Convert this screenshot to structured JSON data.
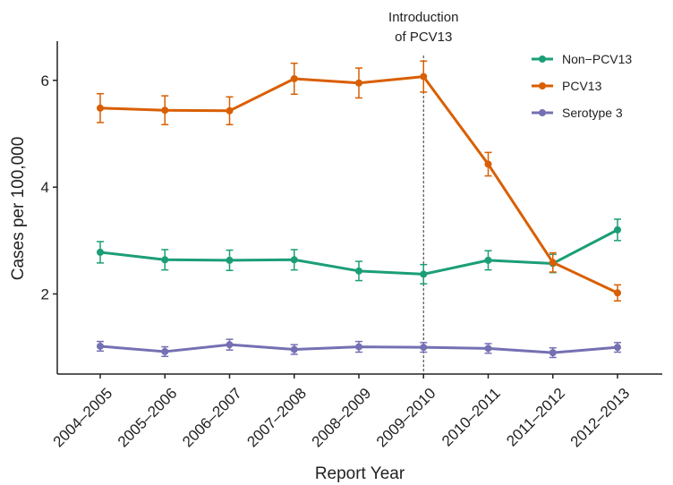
{
  "chart_data": {
    "type": "line",
    "title": "",
    "xlabel": "Report Year",
    "ylabel": "Cases per 100,000",
    "categories": [
      "2004–2005",
      "2005–2006",
      "2006–2007",
      "2007–2008",
      "2008–2009",
      "2009–2010",
      "2010–2011",
      "2011–2012",
      "2012–2013"
    ],
    "y_ticks": [
      2,
      4,
      6
    ],
    "ylim": [
      0.5,
      6.7
    ],
    "grid": false,
    "legend_position": "top-right",
    "series": [
      {
        "name": "Non−PCV13",
        "color": "#1b9e77",
        "values": [
          2.78,
          2.64,
          2.63,
          2.64,
          2.43,
          2.37,
          2.63,
          2.57,
          3.2
        ],
        "lower": [
          2.58,
          2.45,
          2.44,
          2.45,
          2.25,
          2.19,
          2.45,
          2.4,
          3.0
        ],
        "upper": [
          2.98,
          2.83,
          2.82,
          2.83,
          2.61,
          2.55,
          2.81,
          2.74,
          3.4
        ]
      },
      {
        "name": "PCV13",
        "color": "#d95f02",
        "values": [
          5.48,
          5.44,
          5.43,
          6.03,
          5.95,
          6.07,
          4.43,
          2.59,
          2.02
        ],
        "lower": [
          5.21,
          5.17,
          5.17,
          5.74,
          5.67,
          5.78,
          4.21,
          2.41,
          1.87
        ],
        "upper": [
          5.75,
          5.71,
          5.69,
          6.32,
          6.23,
          6.36,
          4.65,
          2.77,
          2.17
        ]
      },
      {
        "name": "Serotype 3",
        "color": "#7570b3",
        "values": [
          1.02,
          0.92,
          1.05,
          0.96,
          1.01,
          1.0,
          0.98,
          0.9,
          1.0
        ],
        "lower": [
          0.93,
          0.83,
          0.95,
          0.87,
          0.91,
          0.91,
          0.89,
          0.81,
          0.91
        ],
        "upper": [
          1.11,
          1.01,
          1.15,
          1.05,
          1.11,
          1.09,
          1.07,
          0.99,
          1.09
        ]
      }
    ],
    "annotation": {
      "category": "2009–2010",
      "lines": [
        "Introduction",
        "of PCV13"
      ]
    }
  }
}
